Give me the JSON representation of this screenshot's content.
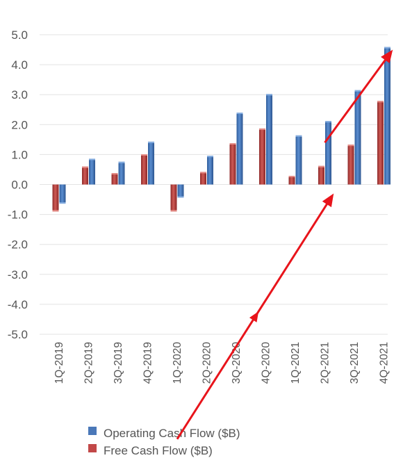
{
  "chart_data": {
    "type": "bar",
    "categories": [
      "1Q-2019",
      "2Q-2019",
      "3Q-2019",
      "4Q-2019",
      "1Q-2020",
      "2Q-2020",
      "3Q-2020",
      "4Q-2020",
      "1Q-2021",
      "2Q-2021",
      "3Q-2021",
      "4Q-2021"
    ],
    "series": [
      {
        "name": "Operating Cash Flow ($B)",
        "color": "#3f6fb2",
        "values": [
          -0.64,
          0.86,
          0.76,
          1.43,
          -0.44,
          0.96,
          2.4,
          3.02,
          1.64,
          2.12,
          3.15,
          4.59
        ]
      },
      {
        "name": "Free Cash Flow ($B)",
        "color": "#b23a3a",
        "values": [
          -0.9,
          0.6,
          0.38,
          1.01,
          -0.9,
          0.42,
          1.38,
          1.87,
          0.29,
          0.62,
          1.33,
          2.79
        ]
      }
    ],
    "yticks": [
      "5.0",
      "4.0",
      "3.0",
      "2.0",
      "1.0",
      "0.0",
      "-1.0",
      "-2.0",
      "-3.0",
      "-4.0",
      "-5.0"
    ],
    "ylim": [
      -5,
      5
    ],
    "grid": true,
    "legend": "bottom",
    "annotations": [
      {
        "type": "arrow",
        "color": "#e8141b",
        "from": [
          4.0,
          -8.5
        ],
        "to": [
          9.3,
          -0.3
        ],
        "midpoint_marker": true
      },
      {
        "type": "arrow",
        "color": "#e8141b",
        "from": [
          9.0,
          1.4
        ],
        "to": [
          11.3,
          4.5
        ]
      }
    ]
  }
}
